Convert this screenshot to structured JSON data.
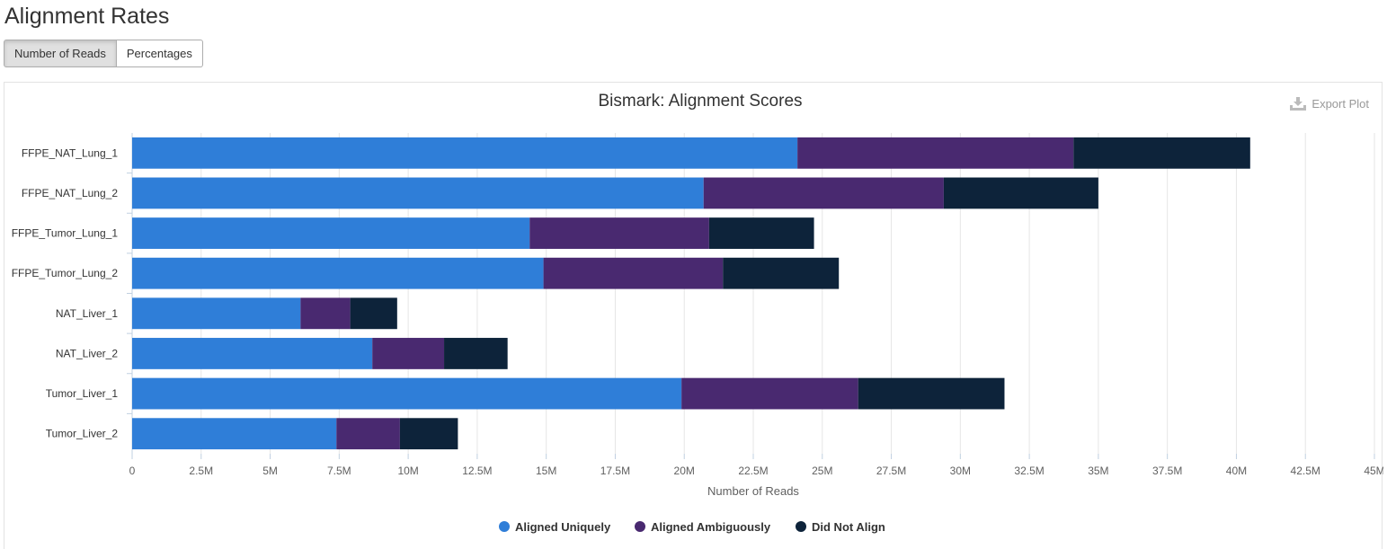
{
  "page": {
    "title": "Alignment Rates",
    "toggle": {
      "options": [
        "Number of Reads",
        "Percentages"
      ],
      "selected": "Number of Reads"
    },
    "export_label": "Export Plot",
    "export_icon": "download-icon"
  },
  "chart_data": {
    "type": "bar",
    "orientation": "horizontal",
    "stacked": true,
    "title": "Bismark: Alignment Scores",
    "xlabel": "Number of Reads",
    "ylabel": "",
    "xlim": [
      0,
      45000000
    ],
    "xticks": [
      0,
      2500000,
      5000000,
      7500000,
      10000000,
      12500000,
      15000000,
      17500000,
      20000000,
      22500000,
      25000000,
      27500000,
      30000000,
      32500000,
      35000000,
      37500000,
      40000000,
      42500000,
      45000000
    ],
    "xtick_labels": [
      "0",
      "2.5M",
      "5M",
      "7.5M",
      "10M",
      "12.5M",
      "15M",
      "17.5M",
      "20M",
      "22.5M",
      "25M",
      "27.5M",
      "30M",
      "32.5M",
      "35M",
      "37.5M",
      "40M",
      "42.5M",
      "45M"
    ],
    "grid": true,
    "legend_position": "bottom-center",
    "categories": [
      "FFPE_NAT_Lung_1",
      "FFPE_NAT_Lung_2",
      "FFPE_Tumor_Lung_1",
      "FFPE_Tumor_Lung_2",
      "NAT_Liver_1",
      "NAT_Liver_2",
      "Tumor_Liver_1",
      "Tumor_Liver_2"
    ],
    "series": [
      {
        "name": "Aligned Uniquely",
        "color": "#2f7ed8",
        "values": [
          24100000,
          20700000,
          14400000,
          14900000,
          6100000,
          8700000,
          19900000,
          7400000
        ]
      },
      {
        "name": "Aligned Ambiguously",
        "color": "#492970",
        "values": [
          10000000,
          8700000,
          6500000,
          6500000,
          1800000,
          2600000,
          6400000,
          2300000
        ]
      },
      {
        "name": "Did Not Align",
        "color": "#0d233a",
        "values": [
          6400000,
          5600000,
          3800000,
          4200000,
          1700000,
          2300000,
          5300000,
          2100000
        ]
      }
    ]
  }
}
